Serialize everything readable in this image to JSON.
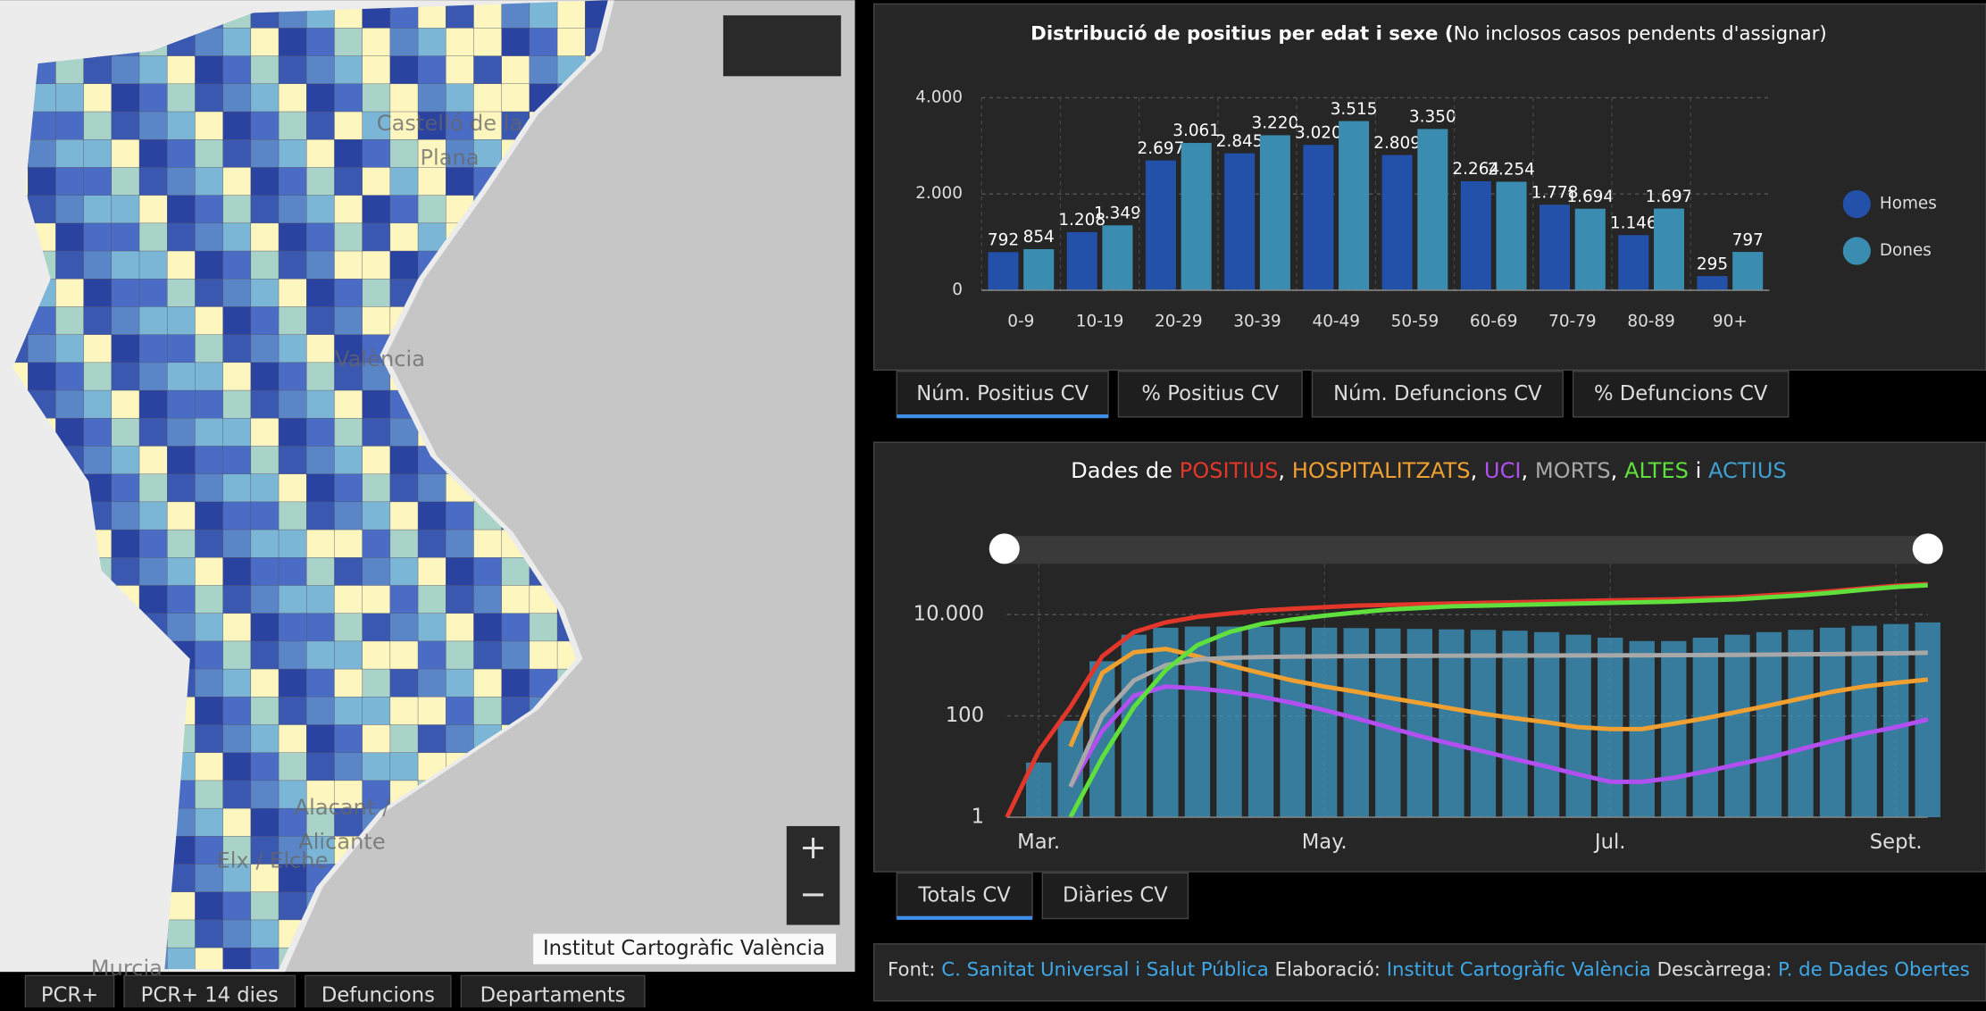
{
  "map": {
    "labels": [
      "Castelló de la",
      "Plana",
      "València",
      "Alacant /",
      "Alicante",
      "Elx / Elche",
      "Murcia"
    ],
    "attribution": "Institut Cartogràfic València",
    "tabs": [
      "PCR+",
      "PCR+ 14 dies",
      "Defuncions",
      "Departaments"
    ]
  },
  "chart_data": [
    {
      "type": "bar",
      "title": "Distribució de positius per edat i sexe (",
      "subtitle": "No inclosos casos pendents d'assignar)",
      "categories": [
        "0-9",
        "10-19",
        "20-29",
        "30-39",
        "40-49",
        "50-59",
        "60-69",
        "70-79",
        "80-89",
        "90+"
      ],
      "series": [
        {
          "name": "Homes",
          "color": "#2350a8",
          "values": [
            792,
            1208,
            2697,
            2845,
            3020,
            2809,
            2264,
            1778,
            1146,
            295
          ],
          "value_labels": [
            "792",
            "1.208",
            "2.697",
            "2.845",
            "3.020",
            "2.809",
            "2.264",
            "1.778",
            "1.146",
            "295"
          ]
        },
        {
          "name": "Dones",
          "color": "#3a8db0",
          "values": [
            854,
            1349,
            3061,
            3220,
            3515,
            3350,
            2254,
            1694,
            1697,
            797
          ],
          "value_labels": [
            "854",
            "1.349",
            "3.061",
            "3.220",
            "3.515",
            "3.350",
            "2.254",
            "1.694",
            "1.697",
            "797"
          ]
        }
      ],
      "ylim": [
        0,
        4000
      ],
      "yticks": [
        0,
        {
          "value": 2000,
          "label": "2.000"
        },
        {
          "value": 4000,
          "label": "4.000"
        }
      ],
      "grid": true,
      "legend": "right",
      "tabs": [
        "Núm. Positius CV",
        "% Positius CV",
        "Núm. Defuncions CV",
        "% Defuncions CV"
      ]
    },
    {
      "type": "line",
      "title_prefix": "Dades de",
      "title_separator": ",",
      "title_conjunction": "i",
      "log_scale": true,
      "categories": [
        null,
        "Mar.",
        null,
        null,
        null,
        null,
        null,
        null,
        null,
        null,
        "May.",
        null,
        null,
        null,
        null,
        null,
        null,
        null,
        null,
        "Jul.",
        null,
        null,
        null,
        null,
        null,
        null,
        null,
        null,
        "Sept.",
        null
      ],
      "series": [
        {
          "name": "POSITIUS",
          "color": "#e2372a",
          "values": [
            1,
            20,
            150,
            1500,
            4500,
            7000,
            9000,
            10500,
            12000,
            13000,
            14000,
            15000,
            15500,
            16000,
            16500,
            17000,
            17500,
            18000,
            18500,
            19000,
            19500,
            20000,
            21000,
            22000,
            24000,
            26000,
            29000,
            33000,
            37000,
            40000
          ]
        },
        {
          "name": "HOSPITALITZATS",
          "color": "#f0a030",
          "values": [
            null,
            null,
            25,
            700,
            1800,
            2100,
            1500,
            1000,
            700,
            500,
            380,
            300,
            230,
            180,
            140,
            110,
            90,
            75,
            60,
            55,
            55,
            70,
            90,
            120,
            160,
            220,
            300,
            380,
            450,
            520
          ]
        },
        {
          "name": "UCI",
          "color": "#b24ff0",
          "values": [
            null,
            null,
            4,
            50,
            250,
            380,
            350,
            300,
            240,
            180,
            130,
            90,
            60,
            40,
            28,
            20,
            14,
            10,
            7,
            5,
            5,
            6,
            8,
            11,
            15,
            22,
            32,
            45,
            60,
            85
          ]
        },
        {
          "name": "MORTS",
          "color": "#a8a8a8",
          "values": [
            null,
            null,
            4,
            100,
            500,
            1000,
            1300,
            1400,
            1450,
            1480,
            1500,
            1510,
            1520,
            1530,
            1540,
            1545,
            1550,
            1555,
            1560,
            1565,
            1570,
            1580,
            1590,
            1600,
            1620,
            1640,
            1660,
            1690,
            1720,
            1760
          ]
        },
        {
          "name": "ALTES",
          "color": "#5fe03c",
          "values": [
            null,
            null,
            1,
            15,
            150,
            800,
            2500,
            4500,
            6500,
            8000,
            9500,
            11000,
            12500,
            13500,
            14500,
            15000,
            15500,
            16000,
            16500,
            17000,
            17500,
            18000,
            19000,
            20000,
            22000,
            24000,
            27000,
            31000,
            35000,
            38000
          ]
        },
        {
          "name": "ACTIUS",
          "color": "#3fa0d0",
          "values": [
            1,
            12,
            80,
            1200,
            4000,
            5500,
            5800,
            5800,
            5700,
            5600,
            5500,
            5400,
            5300,
            5200,
            5100,
            5000,
            4800,
            4500,
            4000,
            3500,
            3000,
            3000,
            3500,
            4000,
            4500,
            5000,
            5500,
            6000,
            6500,
            7000
          ]
        }
      ],
      "ylim": [
        1,
        100000
      ],
      "yticks": [
        1,
        100,
        {
          "value": 10000,
          "label": "10.000"
        }
      ],
      "grid": true,
      "tabs": [
        "Totals CV",
        "Diàries CV"
      ]
    }
  ],
  "footer": {
    "font_label": "Font:",
    "font_link": "C. Sanitat Universal i Salut Pública",
    "elab_label": "Elaboració:",
    "elab_link": "Institut Cartogràfic València",
    "desc_label": "Descàrrega:",
    "desc_link": "P. de Dades Obertes"
  }
}
